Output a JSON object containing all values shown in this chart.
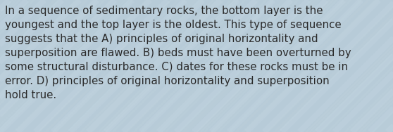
{
  "text_lines": [
    "In a sequence of sedimentary rocks, the bottom layer is the",
    "youngest and the top layer is the oldest. This type of sequence",
    "suggests that the A) principles of original horizontality and",
    "superposition are flawed. B) beds must have been overturned by",
    "some structural disturbance. C) dates for these rocks must be in",
    "error. D) principles of original horizontality and superposition",
    "hold true."
  ],
  "bg_color": "#b8ccd8",
  "bg_light": "#c8dae6",
  "bg_dark": "#a8bcc8",
  "text_color": "#2a2a2a",
  "font_size": 10.8,
  "figsize": [
    5.58,
    1.88
  ],
  "dpi": 100,
  "texture_color": "#b0c8d8",
  "texture_light": "#ccdce8"
}
